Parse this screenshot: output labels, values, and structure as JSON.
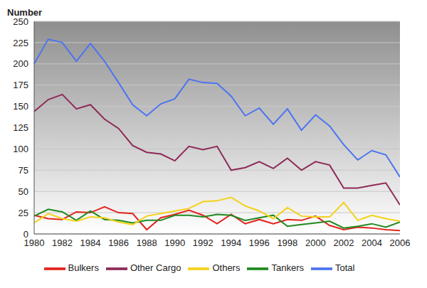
{
  "chart_data": {
    "type": "line",
    "y_label": "Number",
    "x": [
      1980,
      1981,
      1982,
      1983,
      1984,
      1985,
      1986,
      1987,
      1988,
      1989,
      1990,
      1991,
      1992,
      1993,
      1994,
      1995,
      1996,
      1997,
      1998,
      1999,
      2000,
      2001,
      2002,
      2003,
      2004,
      2005,
      2006
    ],
    "xlim": [
      1980,
      2006
    ],
    "xticks": [
      1980,
      1982,
      1984,
      1986,
      1988,
      1990,
      1992,
      1994,
      1996,
      1998,
      2000,
      2002,
      2004,
      2006
    ],
    "ylim": [
      0,
      250
    ],
    "yticks": [
      0,
      25,
      50,
      75,
      100,
      125,
      150,
      175,
      200,
      225,
      250
    ],
    "grid": true,
    "legend": "bottom",
    "series": [
      {
        "name": "Bulkers",
        "color": "#e3241e",
        "values": [
          22,
          18,
          17,
          26,
          25,
          32,
          25,
          24,
          5,
          19,
          23,
          28,
          22,
          12,
          23,
          12,
          17,
          12,
          17,
          16,
          21,
          10,
          5,
          8,
          7,
          5,
          4
        ]
      },
      {
        "name": "Tankers",
        "color": "#1f8a1f",
        "values": [
          21,
          29,
          26,
          16,
          27,
          17,
          16,
          13,
          16,
          16,
          22,
          22,
          20,
          23,
          22,
          16,
          19,
          22,
          9,
          11,
          13,
          15,
          7,
          9,
          12,
          8,
          14
        ]
      },
      {
        "name": "Other Cargo",
        "color": "#8e2a58",
        "values": [
          144,
          158,
          164,
          147,
          152,
          135,
          124,
          104,
          96,
          94,
          86,
          103,
          99,
          103,
          75,
          78,
          85,
          77,
          89,
          75,
          85,
          81,
          54,
          54,
          57,
          60,
          34
        ]
      },
      {
        "name": "Others",
        "color": "#f3d21a",
        "values": [
          13,
          24,
          18,
          15,
          20,
          19,
          14,
          11,
          21,
          24,
          27,
          30,
          38,
          39,
          43,
          33,
          27,
          18,
          31,
          21,
          20,
          20,
          37,
          16,
          22,
          18,
          15
        ]
      },
      {
        "name": "Total",
        "color": "#4d74f0",
        "values": [
          200,
          229,
          225,
          203,
          224,
          203,
          178,
          152,
          139,
          153,
          159,
          182,
          178,
          177,
          162,
          139,
          148,
          129,
          147,
          122,
          140,
          127,
          105,
          87,
          98,
          93,
          67
        ]
      }
    ]
  }
}
